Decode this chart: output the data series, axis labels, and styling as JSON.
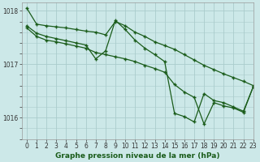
{
  "title": "Graphe pression niveau de la mer (hPa)",
  "background_color": "#cce8e8",
  "grid_color": "#aacccc",
  "line_color": "#1a5c1a",
  "xlim": [
    -0.5,
    23
  ],
  "ylim": [
    1015.6,
    1018.15
  ],
  "yticks": [
    1016,
    1017,
    1018
  ],
  "xticks": [
    0,
    1,
    2,
    3,
    4,
    5,
    6,
    7,
    8,
    9,
    10,
    11,
    12,
    13,
    14,
    15,
    16,
    17,
    18,
    19,
    20,
    21,
    22,
    23
  ],
  "series1": [
    1018.05,
    1017.75,
    1017.72,
    1017.7,
    1017.68,
    1017.65,
    1017.62,
    1017.6,
    1017.55,
    1017.8,
    1017.72,
    1017.6,
    1017.52,
    1017.42,
    1017.35,
    1017.28,
    1017.18,
    1017.08,
    1016.98,
    1016.9,
    1016.82,
    1016.75,
    1016.68,
    1016.6
  ],
  "series2": [
    1017.72,
    1017.58,
    1017.52,
    1017.48,
    1017.44,
    1017.4,
    1017.36,
    1017.1,
    1017.25,
    1017.82,
    1017.65,
    1017.45,
    1017.3,
    1017.18,
    1017.05,
    1016.08,
    1016.02,
    1015.92,
    1016.45,
    1016.32,
    1016.28,
    1016.2,
    1016.12,
    1016.58
  ],
  "series3": [
    1017.68,
    1017.52,
    1017.45,
    1017.42,
    1017.38,
    1017.34,
    1017.3,
    1017.22,
    1017.18,
    1017.14,
    1017.1,
    1017.05,
    1016.98,
    1016.92,
    1016.85,
    1016.62,
    1016.48,
    1016.38,
    1015.88,
    1016.28,
    1016.22,
    1016.18,
    1016.1,
    1016.58
  ],
  "title_fontsize": 6.5,
  "tick_fontsize": 5.5,
  "ylabel_fontsize": 6
}
